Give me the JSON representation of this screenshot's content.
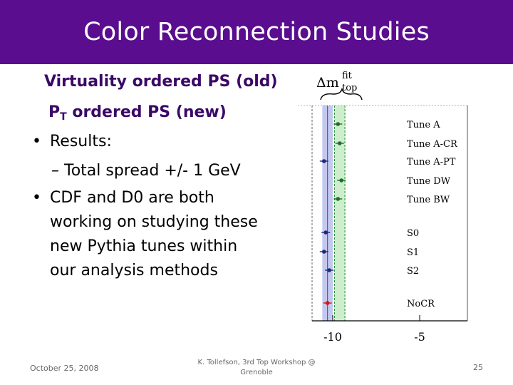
{
  "slide": {
    "title": "Color Reconnection Studies",
    "lines": {
      "virtuality": "Virtuality ordered PS (old)",
      "pt_main": "P",
      "pt_sub": "T",
      "pt_rest": " ordered PS (new)",
      "results": "Results:",
      "spread": "– Total spread +/- 1 GeV",
      "cdf1": "CDF and D0 are both",
      "cdf2": "working on studying these",
      "cdf3": "new Pythia tunes within",
      "cdf4": "our analysis methods"
    },
    "bullet_glyph": "•"
  },
  "plot": {
    "header_main": "Δm",
    "header_sup": "fit",
    "header_sub": "top",
    "tunes": [
      {
        "label": "Tune A",
        "value": -9.7,
        "color": "#1e6e2c"
      },
      {
        "label": "Tune A-CR",
        "value": -9.6,
        "color": "#1e6e2c"
      },
      {
        "label": "Tune A-PT",
        "value": -10.5,
        "color": "#1c2a7a"
      },
      {
        "label": "Tune DW",
        "value": -9.5,
        "color": "#1e6e2c"
      },
      {
        "label": "Tune BW",
        "value": -9.7,
        "color": "#1e6e2c"
      },
      {
        "label": "S0",
        "value": -10.4,
        "color": "#1c2a7a"
      },
      {
        "label": "S1",
        "value": -10.5,
        "color": "#1c2a7a"
      },
      {
        "label": "S2",
        "value": -10.2,
        "color": "#1c2a7a"
      },
      {
        "label": "NoCR",
        "value": -10.3,
        "color": "#cc1a1a"
      }
    ],
    "x_ticks": [
      "-10",
      "-5"
    ],
    "x_tick_values": [
      -10,
      -5
    ],
    "blue_band_range": [
      -10.6,
      -10.0
    ],
    "green_band_range": [
      -9.9,
      -9.3
    ]
  },
  "footer": {
    "date": "October 25, 2008",
    "presenter_line1": "K. Tollefson, 3rd Top Workshop @",
    "presenter_line2": "Grenoble",
    "page_number": "25"
  }
}
